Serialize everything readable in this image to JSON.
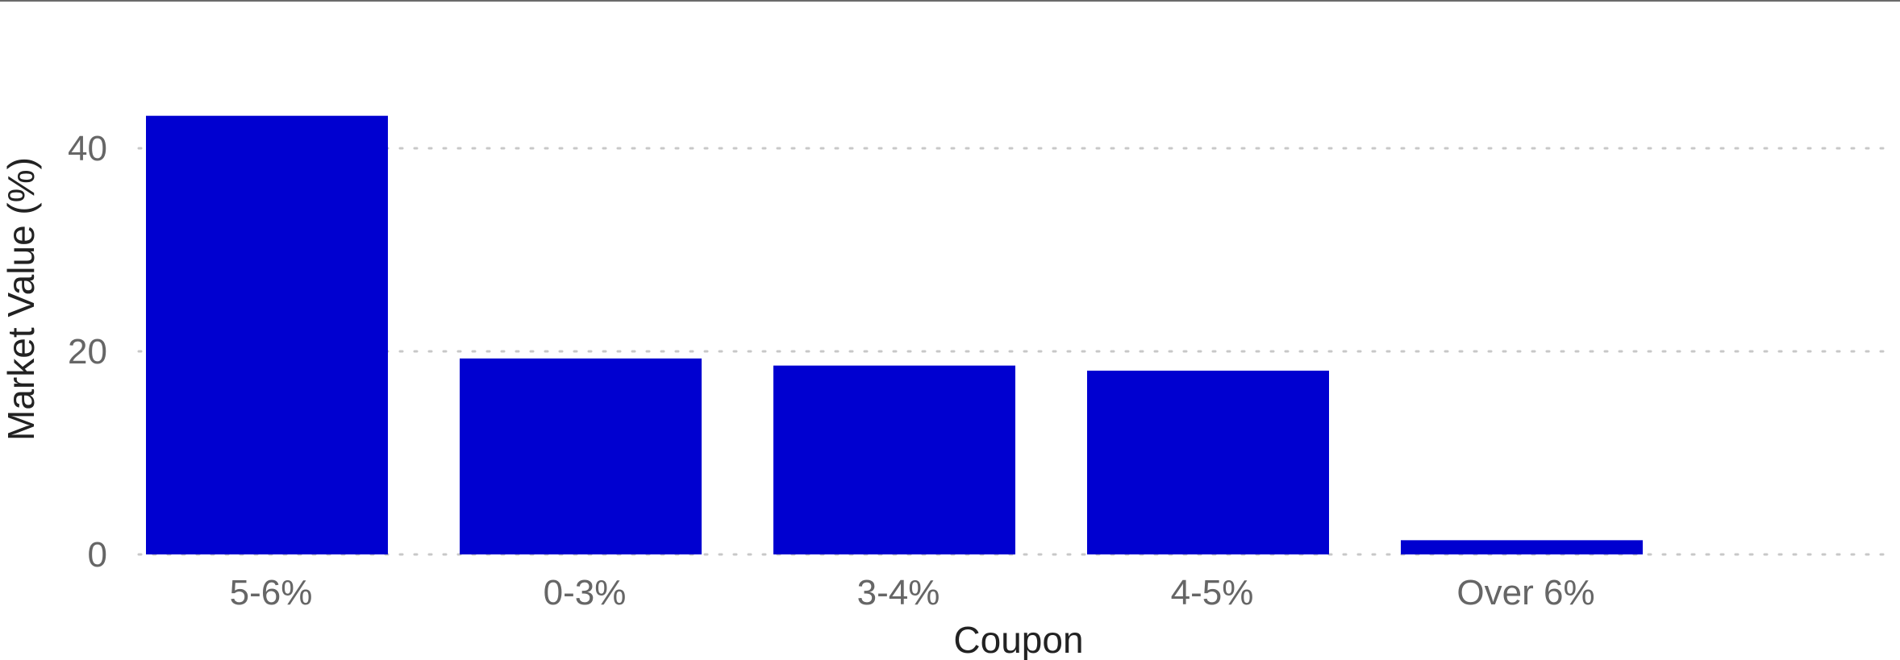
{
  "chart_data": {
    "type": "bar",
    "title": "",
    "xlabel": "Coupon",
    "ylabel": "Market Value (%)",
    "categories": [
      "5-6%",
      "0-3%",
      "3-4%",
      "4-5%",
      "Over 6%"
    ],
    "values": [
      43.2,
      19.3,
      18.6,
      18.1,
      1.4
    ],
    "ylim": [
      0,
      50
    ],
    "yticks": [
      0,
      20,
      40
    ],
    "ytick_labels": [
      "0",
      "20",
      "40"
    ],
    "grid": "horizontal dotted",
    "legend": "none",
    "bar_color": "#0000D0"
  }
}
